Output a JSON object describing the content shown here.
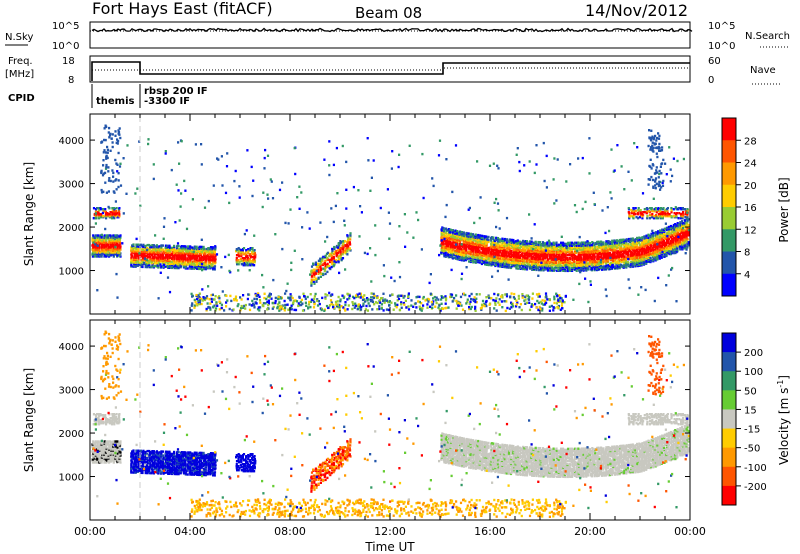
{
  "header": {
    "title": "Fort Hays East (fitACF)",
    "beam": "Beam 08",
    "date": "14/Nov/2012"
  },
  "top_panels": {
    "nsky_label": "N.Sky",
    "nsky_top": "10^5",
    "nsky_bottom": "10^0",
    "nsearch_label": "N.Search",
    "nsearch_top": "10^5",
    "nsearch_bottom": "10^0",
    "freq_label": "Freq.",
    "freq_unit": "[MHz]",
    "freq_top": "18",
    "freq_bottom": "8",
    "nave_label": "Nave",
    "nave_top": "60",
    "nave_bottom": "0",
    "cpid_label": "CPID",
    "cpid_a": "themis",
    "cpid_b1": "rbsp 200 IF",
    "cpid_b2": "-3300 IF"
  },
  "axes": {
    "ylabel": "Slant Range [km]",
    "xlabel": "Time UT",
    "x_ticks": [
      "00:00",
      "04:00",
      "08:00",
      "12:00",
      "16:00",
      "20:00",
      "00:00"
    ],
    "y_ticks": [
      "1000",
      "2000",
      "3000",
      "4000"
    ]
  },
  "power_colorbar": {
    "label": "Power [dB]",
    "ticks": [
      "28",
      "24",
      "20",
      "16",
      "12",
      "8",
      "4"
    ],
    "colors": [
      "#ff0000",
      "#ff5500",
      "#ff9900",
      "#ffcc00",
      "#99cc33",
      "#339966",
      "#2255aa",
      "#0000ff"
    ]
  },
  "velocity_colorbar": {
    "label": "Velocity [m s",
    "label_sup": "-1",
    "label_end": "]",
    "ticks": [
      "200",
      "100",
      "50",
      "15",
      "-15",
      "-50",
      "-100",
      "-200"
    ],
    "colors": [
      "#0000dd",
      "#2255aa",
      "#339966",
      "#66cc33",
      "#c8c8c0",
      "#ffcc00",
      "#ff9900",
      "#ff5500",
      "#ff0000"
    ]
  },
  "chart_data": {
    "type": "heatmap",
    "x_unit": "hours UT",
    "xlim": [
      0,
      24
    ],
    "ylim": [
      0,
      4600
    ],
    "features": [
      {
        "name": "early echoes",
        "t_start": 0.0,
        "t_end": 1.2,
        "range_low": 1000,
        "range_high": 2600
      },
      {
        "name": "band 1",
        "t_start": 1.5,
        "t_end": 5.0,
        "range_low": 1000,
        "range_high": 1800
      },
      {
        "name": "patch 6h",
        "t_start": 5.8,
        "t_end": 6.6,
        "range_low": 1100,
        "range_high": 1700
      },
      {
        "name": "streak 9-10h",
        "t_start": 8.8,
        "t_end": 10.4,
        "range_low": 600,
        "range_high": 1900
      },
      {
        "name": "ground scatter band",
        "t_start": 14.0,
        "t_end": 24.0,
        "range_low": 900,
        "range_high": 2100
      },
      {
        "name": "near range",
        "t_start": 7.0,
        "t_end": 17.0,
        "range_low": 100,
        "range_high": 500
      }
    ]
  }
}
